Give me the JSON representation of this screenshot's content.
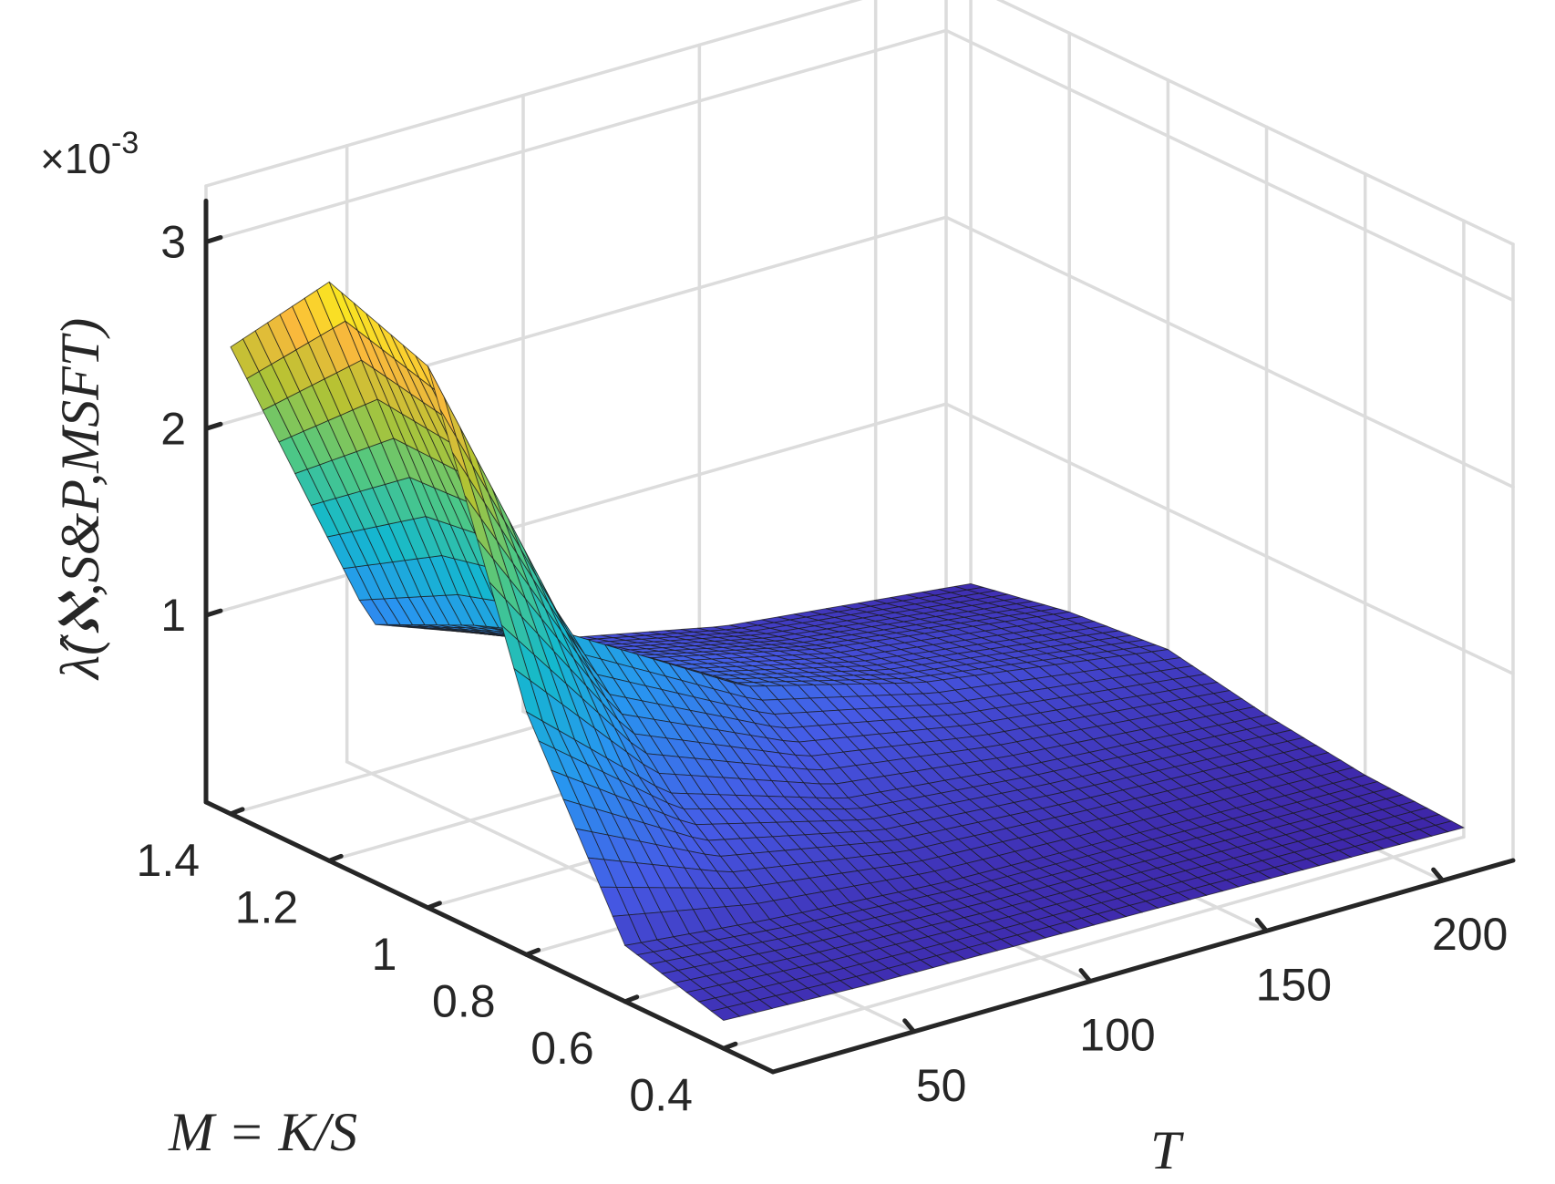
{
  "chart_data": {
    "type": "surface",
    "title": "",
    "xlabel": "T",
    "ylabel": "M = K/S",
    "zlabel": "λ̂(ℵ,S&P,MSFT)",
    "z_multiplier": "×10",
    "z_exponent": "-3",
    "x_ticks": [
      "50",
      "100",
      "150",
      "200"
    ],
    "x_tick_values": [
      50,
      100,
      150,
      200
    ],
    "y_ticks": [
      "1.4",
      "1.2",
      "1",
      "0.8",
      "0.6",
      "0.4"
    ],
    "y_tick_values": [
      1.4,
      1.2,
      1.0,
      0.8,
      0.6,
      0.4
    ],
    "z_ticks": [
      "1",
      "2",
      "3"
    ],
    "z_tick_values": [
      1,
      2,
      3
    ],
    "xlim": [
      10,
      220
    ],
    "ylim": [
      0.3,
      1.45
    ],
    "zlim": [
      0,
      3.3
    ],
    "colormap": "parula",
    "grid": true,
    "surface_samples": {
      "T": [
        10,
        50,
        100,
        150,
        220
      ],
      "M": [
        0.4,
        0.6,
        0.8,
        1.0,
        1.2,
        1.4
      ],
      "Z": [
        [
          0.15,
          0.3,
          1.3,
          2.9,
          3.1,
          2.5
        ],
        [
          0.12,
          0.22,
          0.65,
          1.25,
          1.05,
          0.8
        ],
        [
          0.1,
          0.15,
          0.35,
          0.7,
          0.6,
          0.45
        ],
        [
          0.08,
          0.12,
          0.25,
          0.45,
          0.38,
          0.25
        ],
        [
          0.05,
          0.08,
          0.15,
          0.25,
          0.2,
          0.1
        ]
      ]
    },
    "colors": {
      "axis": "#262626",
      "grid": "#dcdcdc",
      "mesh_edge": "#1a1a1a"
    }
  }
}
